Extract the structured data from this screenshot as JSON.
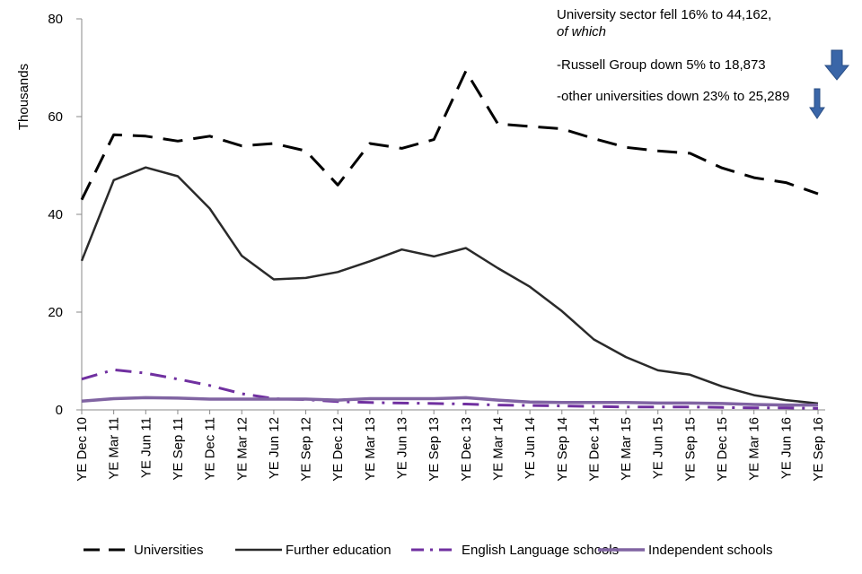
{
  "chart_data": {
    "type": "line",
    "ylabel": "Thousands",
    "ylim": [
      0,
      80
    ],
    "yticks": [
      0,
      20,
      40,
      60,
      80
    ],
    "categories": [
      "YE Dec 10",
      "YE Mar 11",
      "YE Jun 11",
      "YE Sep 11",
      "YE Dec 11",
      "YE Mar 12",
      "YE Jun 12",
      "YE Sep 12",
      "YE Dec 12",
      "YE Mar 13",
      "YE Jun 13",
      "YE Sep 13",
      "YE Dec 13",
      "YE Mar 14",
      "YE Jun 14",
      "YE Sep 14",
      "YE Dec 14",
      "YE Mar 15",
      "YE Jun 15",
      "YE Sep 15",
      "YE Dec 15",
      "YE Mar 16",
      "YE Jun 16",
      "YE Sep 16"
    ],
    "series": [
      {
        "name": "Universities",
        "color": "#000000",
        "style": "dash",
        "values": [
          43,
          56.3,
          56,
          55,
          56,
          54,
          54.5,
          53,
          46,
          54.5,
          53.5,
          55.3,
          69.3,
          58.5,
          58,
          57.5,
          55.5,
          53.7,
          53,
          52.5,
          49.5,
          47.5,
          46.5,
          44.2
        ]
      },
      {
        "name": "Further education",
        "color": "#2a2a2a",
        "style": "solid",
        "values": [
          30.5,
          47,
          49.6,
          47.8,
          41.2,
          31.5,
          26.7,
          27,
          28.2,
          30.4,
          32.8,
          31.4,
          33.1,
          29,
          25.2,
          20.2,
          14.4,
          10.8,
          8.1,
          7.2,
          4.8,
          3,
          2,
          1.3
        ]
      },
      {
        "name": "English Language schools",
        "color": "#7030a0",
        "style": "dashdot",
        "values": [
          6.3,
          8.2,
          7.5,
          6.3,
          5,
          3.3,
          2.3,
          2.1,
          1.7,
          1.5,
          1.4,
          1.3,
          1.2,
          1,
          0.9,
          0.8,
          0.7,
          0.6,
          0.6,
          0.6,
          0.5,
          0.4,
          0.4,
          0.3
        ]
      },
      {
        "name": "Independent schools",
        "color": "#8064a2",
        "style": "solid",
        "values": [
          1.8,
          2.3,
          2.5,
          2.4,
          2.2,
          2.2,
          2.2,
          2.2,
          2,
          2.3,
          2.3,
          2.3,
          2.5,
          2,
          1.6,
          1.5,
          1.5,
          1.5,
          1.4,
          1.4,
          1.3,
          1.1,
          1,
          1
        ]
      }
    ]
  },
  "annotations": {
    "line1": "University sector fell 16% to 44,162,",
    "line2": "of which",
    "line3": "-Russell Group down  5% to 18,873",
    "line4": "-other universities down 23% to 25,289"
  },
  "arrow_color": "#3a66a8",
  "arrow_icon": "down-arrow-icon"
}
